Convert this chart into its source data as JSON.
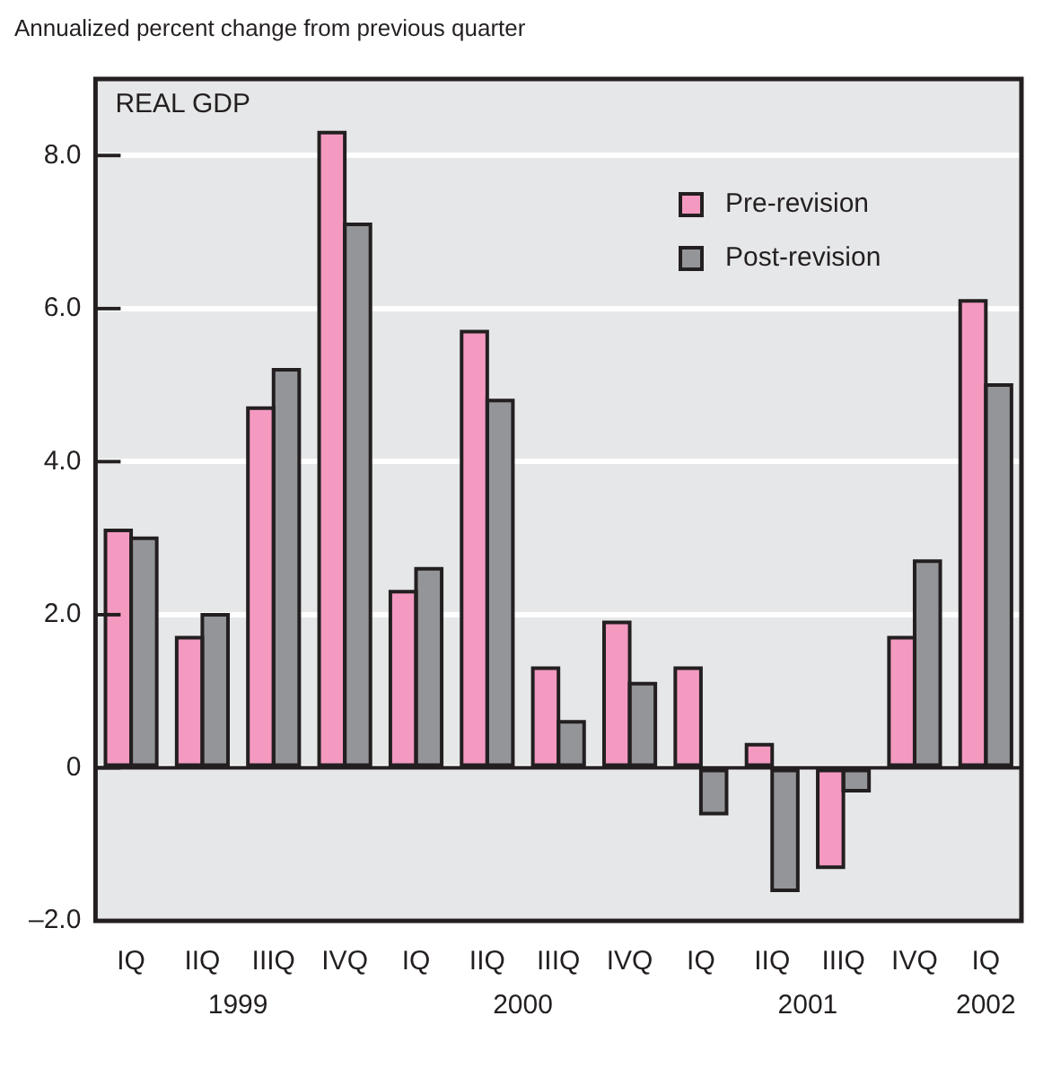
{
  "chart_data": {
    "type": "bar",
    "title": "REAL GDP",
    "ylabel": "Annualized percent change from previous quarter",
    "categories": [
      "IQ",
      "IIQ",
      "IIIQ",
      "IVQ",
      "IQ",
      "IIQ",
      "IIIQ",
      "IVQ",
      "IQ",
      "IIQ",
      "IIIQ",
      "IVQ",
      "IQ"
    ],
    "series": [
      {
        "name": "Pre-revision",
        "color": "#f49ac1",
        "values": [
          3.1,
          1.7,
          4.7,
          8.3,
          2.3,
          5.7,
          1.3,
          1.9,
          1.3,
          0.3,
          -1.3,
          1.7,
          6.1
        ]
      },
      {
        "name": "Post-revision",
        "color": "#939598",
        "values": [
          3.0,
          2.0,
          5.2,
          7.1,
          2.6,
          4.8,
          0.6,
          1.1,
          -0.6,
          -1.6,
          -0.3,
          2.7,
          5.0
        ]
      }
    ],
    "ylim": [
      -2,
      9
    ],
    "yticks": [
      {
        "value": -2,
        "label": "–2.0"
      },
      0,
      {
        "value": 2,
        "label": "2.0"
      },
      {
        "value": 4,
        "label": "4.0"
      },
      {
        "value": 6,
        "label": "6.0"
      },
      {
        "value": 8,
        "label": "8.0"
      }
    ],
    "annotations": [
      "1999",
      "2000",
      "2001",
      "2002"
    ],
    "grid": "y",
    "legend": "top right"
  }
}
